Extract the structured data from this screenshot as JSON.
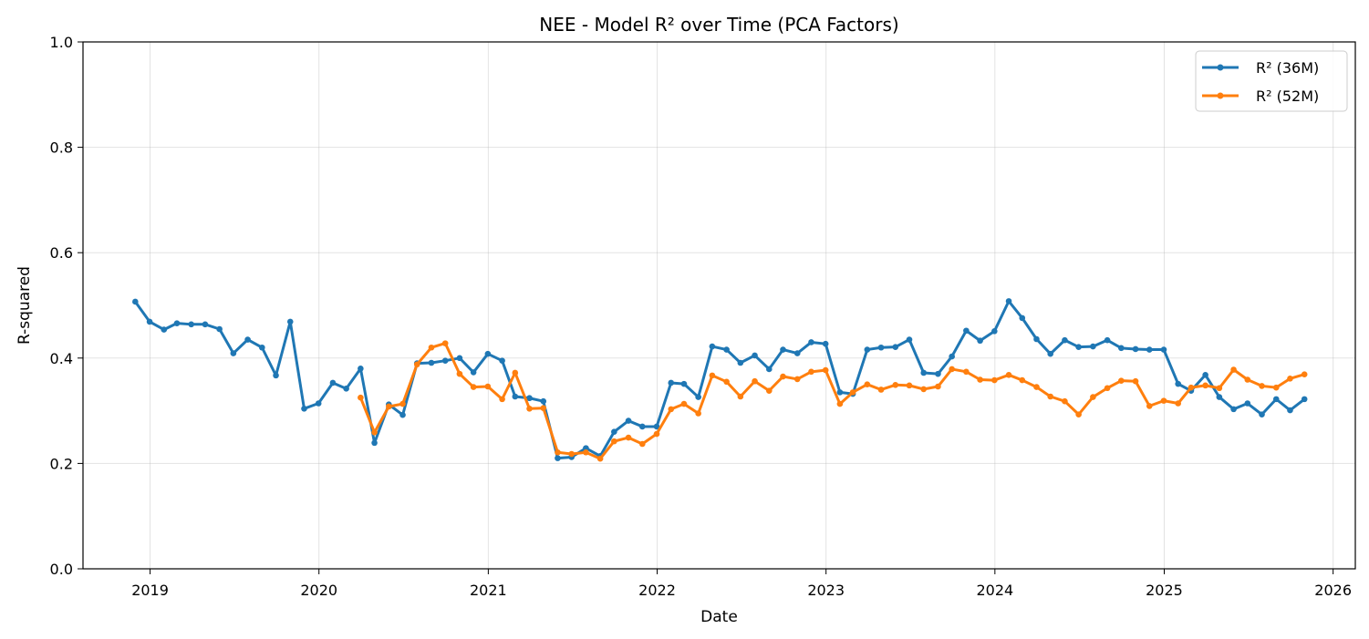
{
  "chart_data": {
    "type": "line",
    "title": "NEE - Model R² over Time (PCA Factors)",
    "xlabel": "Date",
    "ylabel": "R-squared",
    "ylim": [
      0,
      1.0
    ],
    "xlim": [
      "2018-08-09",
      "2026-02-18"
    ],
    "x_ticks": [
      "2019",
      "2020",
      "2021",
      "2022",
      "2023",
      "2024",
      "2025",
      "2026"
    ],
    "y_ticks": [
      "0.0",
      "0.2",
      "0.4",
      "0.6",
      "0.8",
      "1.0"
    ],
    "grid": true,
    "legend_position": "top-right",
    "series": [
      {
        "name": "R² (36M)",
        "color": "#1f77b4",
        "start": "2018-11",
        "values": [
          0.507,
          0.469,
          0.454,
          0.466,
          0.464,
          0.464,
          0.455,
          0.409,
          0.435,
          0.42,
          0.367,
          0.469,
          0.304,
          0.314,
          0.353,
          0.342,
          0.38,
          0.239,
          0.312,
          0.292,
          0.39,
          0.391,
          0.395,
          0.4,
          0.373,
          0.408,
          0.395,
          0.327,
          0.324,
          0.318,
          0.21,
          0.212,
          0.229,
          0.214,
          0.26,
          0.281,
          0.27,
          0.27,
          0.353,
          0.351,
          0.326,
          0.422,
          0.416,
          0.391,
          0.405,
          0.379,
          0.416,
          0.409,
          0.43,
          0.427,
          0.335,
          0.332,
          0.416,
          0.42,
          0.421,
          0.435,
          0.372,
          0.37,
          0.403,
          0.452,
          0.433,
          0.451,
          0.508,
          0.476,
          0.436,
          0.408,
          0.434,
          0.421,
          0.422,
          0.434,
          0.419,
          0.417,
          0.416,
          0.416,
          0.351,
          0.338,
          0.368,
          0.326,
          0.303,
          0.314,
          0.293,
          0.322,
          0.301,
          0.322
        ]
      },
      {
        "name": "R² (52M)",
        "color": "#ff7f0e",
        "start": "2020-03",
        "values": [
          0.325,
          0.259,
          0.308,
          0.313,
          0.388,
          0.42,
          0.428,
          0.37,
          0.345,
          0.346,
          0.322,
          0.372,
          0.304,
          0.305,
          0.221,
          0.218,
          0.221,
          0.209,
          0.242,
          0.249,
          0.237,
          0.256,
          0.303,
          0.313,
          0.295,
          0.367,
          0.355,
          0.327,
          0.356,
          0.338,
          0.365,
          0.36,
          0.374,
          0.377,
          0.313,
          0.335,
          0.35,
          0.34,
          0.349,
          0.348,
          0.341,
          0.346,
          0.379,
          0.374,
          0.359,
          0.358,
          0.368,
          0.358,
          0.345,
          0.327,
          0.318,
          0.293,
          0.326,
          0.343,
          0.357,
          0.356,
          0.309,
          0.319,
          0.314,
          0.344,
          0.348,
          0.343,
          0.378,
          0.359,
          0.347,
          0.344,
          0.361,
          0.369
        ]
      }
    ]
  }
}
